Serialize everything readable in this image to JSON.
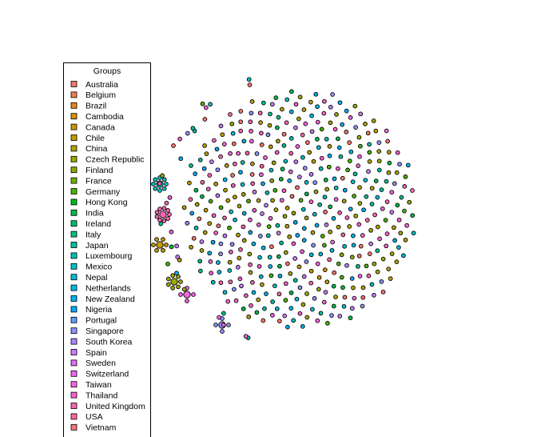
{
  "legend": {
    "title": "Groups",
    "items": [
      {
        "label": "Australia",
        "color": "#F8766D"
      },
      {
        "label": "Belgium",
        "color": "#F07E4F"
      },
      {
        "label": "Brazil",
        "color": "#E7861B"
      },
      {
        "label": "Cambodia",
        "color": "#DB8E00"
      },
      {
        "label": "Canada",
        "color": "#CE9600"
      },
      {
        "label": "Chile",
        "color": "#BF9C00"
      },
      {
        "label": "China",
        "color": "#AFA200"
      },
      {
        "label": "Czech Republic",
        "color": "#9DA700"
      },
      {
        "label": "Finland",
        "color": "#87AC00"
      },
      {
        "label": "France",
        "color": "#6DB000"
      },
      {
        "label": "Germany",
        "color": "#49B500"
      },
      {
        "label": "Hong Kong",
        "color": "#00B81F"
      },
      {
        "label": "India",
        "color": "#00BA4A"
      },
      {
        "label": "Ireland",
        "color": "#00BC6A"
      },
      {
        "label": "Italy",
        "color": "#00BE84"
      },
      {
        "label": "Japan",
        "color": "#00C09B"
      },
      {
        "label": "Luxembourg",
        "color": "#00C0B0"
      },
      {
        "label": "Mexico",
        "color": "#00BFC4"
      },
      {
        "label": "Nepal",
        "color": "#00BCD6"
      },
      {
        "label": "Netherlands",
        "color": "#00B8E5"
      },
      {
        "label": "New Zealand",
        "color": "#00B2F3"
      },
      {
        "label": "Nigeria",
        "color": "#00ABFD"
      },
      {
        "label": "Portugal",
        "color": "#619CFF"
      },
      {
        "label": "Singapore",
        "color": "#8F91FF"
      },
      {
        "label": "South Korea",
        "color": "#AC88FF"
      },
      {
        "label": "Spain",
        "color": "#C77CFF"
      },
      {
        "label": "Sweden",
        "color": "#DB72FB"
      },
      {
        "label": "Switzerland",
        "color": "#EA6AF1"
      },
      {
        "label": "Taiwan",
        "color": "#F564E3"
      },
      {
        "label": "Thailand",
        "color": "#FC61D2"
      },
      {
        "label": "United Kingdom",
        "color": "#FF64B0"
      },
      {
        "label": "USA",
        "color": "#FF6C90"
      },
      {
        "label": "Vietnam",
        "color": "#FA727E"
      }
    ]
  }
}
